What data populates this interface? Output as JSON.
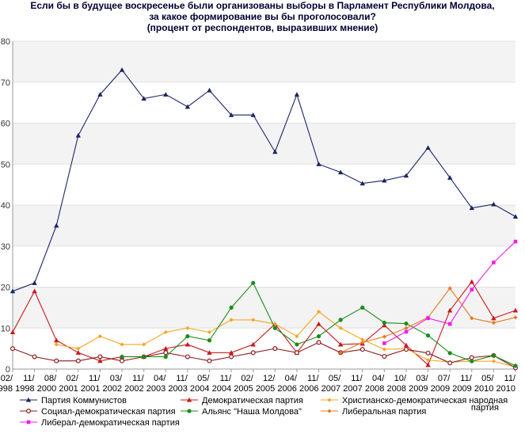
{
  "chart_data": {
    "type": "line",
    "title": [
      "Если бы в будущее воскресенье были организованы выборы в Парламент Республики Молдова,",
      "за какое формирование вы бы проголосовали?",
      "(процент от респондентов, выразивших мнение)"
    ],
    "ylim": [
      0,
      80
    ],
    "yticks": [
      0,
      10,
      20,
      30,
      40,
      50,
      60,
      70,
      80
    ],
    "grid": true,
    "legend_position": "bottom",
    "x_labels": [
      [
        "02/",
        "1998"
      ],
      [
        "11/",
        "1998"
      ],
      [
        "08/",
        "2000"
      ],
      [
        "02/",
        "2001"
      ],
      [
        "11/",
        "2001"
      ],
      [
        "03/",
        "2002"
      ],
      [
        "11/",
        "2002"
      ],
      [
        "04/",
        "2003"
      ],
      [
        "11/",
        "2003"
      ],
      [
        "05/",
        "2004"
      ],
      [
        "11/",
        "2004"
      ],
      [
        "02/",
        "2005"
      ],
      [
        "12/",
        "2005"
      ],
      [
        "04/",
        "2006"
      ],
      [
        "11/",
        "2006"
      ],
      [
        "05/",
        "2007"
      ],
      [
        "11/",
        "2007"
      ],
      [
        "04/",
        "2008"
      ],
      [
        "10/",
        "2008"
      ],
      [
        "03/",
        "2009"
      ],
      [
        "07/",
        "2009"
      ],
      [
        "11/",
        "2009"
      ],
      [
        "05/",
        "2010"
      ],
      [
        "11/",
        "2010"
      ]
    ],
    "series": [
      {
        "name": "Партия Коммунистов",
        "color": "#1a2466",
        "marker": "triangle",
        "points": [
          [
            0,
            19
          ],
          [
            1,
            21
          ],
          [
            2,
            35
          ],
          [
            3,
            57
          ],
          [
            4,
            67
          ],
          [
            5,
            73
          ],
          [
            6,
            66
          ],
          [
            7,
            67
          ],
          [
            8,
            64
          ],
          [
            9,
            68
          ],
          [
            10,
            62
          ],
          [
            11,
            62
          ],
          [
            12,
            53
          ],
          [
            13,
            67
          ],
          [
            14,
            50
          ],
          [
            15,
            48
          ],
          [
            16,
            45.3
          ],
          [
            17,
            46
          ],
          [
            18,
            47.2
          ],
          [
            19,
            54
          ],
          [
            20,
            46.7
          ],
          [
            21,
            39.3
          ],
          [
            22,
            40.2
          ],
          [
            23,
            37.2
          ]
        ]
      },
      {
        "name": "Демократическая партия",
        "color": "#c8191c",
        "marker": "triangle",
        "points": [
          [
            0,
            9
          ],
          [
            1,
            19
          ],
          [
            2,
            7
          ],
          [
            3,
            4
          ],
          [
            4,
            2
          ],
          [
            5,
            3
          ],
          [
            6,
            3
          ],
          [
            7,
            5
          ],
          [
            8,
            6
          ],
          [
            9,
            4
          ],
          [
            10,
            4
          ],
          [
            11,
            6
          ],
          [
            12,
            11
          ],
          [
            13,
            4
          ],
          [
            14,
            11
          ],
          [
            15,
            6
          ],
          [
            16,
            6.2
          ],
          [
            17,
            10.7
          ],
          [
            18,
            5.8
          ],
          [
            19,
            1
          ],
          [
            20,
            14.3
          ],
          [
            21,
            21.3
          ],
          [
            22,
            12.4
          ],
          [
            23,
            14.3
          ]
        ]
      },
      {
        "name": "Христианско-демократическая народная партия",
        "color": "#f5a623",
        "marker": "diamond",
        "points": [
          [
            2,
            6
          ],
          [
            3,
            5
          ],
          [
            4,
            8
          ],
          [
            5,
            6
          ],
          [
            6,
            6
          ],
          [
            7,
            9
          ],
          [
            8,
            10
          ],
          [
            9,
            9
          ],
          [
            10,
            12
          ],
          [
            11,
            12
          ],
          [
            12,
            11
          ],
          [
            13,
            8
          ],
          [
            14,
            14
          ],
          [
            15,
            10
          ],
          [
            16,
            7.2
          ],
          [
            17,
            4.8
          ],
          [
            18,
            5
          ],
          [
            19,
            2.2
          ],
          [
            20,
            1.7
          ],
          [
            21,
            1.9
          ],
          [
            22,
            1.9
          ],
          [
            23,
            0.5
          ]
        ]
      },
      {
        "name": "Социал-демократическая партия",
        "color": "#8b1a1a",
        "marker": "circle-open",
        "points": [
          [
            0,
            5
          ],
          [
            1,
            3
          ],
          [
            2,
            2
          ],
          [
            3,
            2
          ],
          [
            4,
            3
          ],
          [
            5,
            2
          ],
          [
            6,
            3
          ],
          [
            7,
            4
          ],
          [
            8,
            3
          ],
          [
            9,
            2
          ],
          [
            10,
            3
          ],
          [
            11,
            4
          ],
          [
            12,
            5
          ],
          [
            13,
            4
          ],
          [
            14,
            6.5
          ],
          [
            15,
            4
          ],
          [
            16,
            4.8
          ],
          [
            17,
            3.1
          ],
          [
            18,
            4.8
          ],
          [
            19,
            3.9
          ],
          [
            20,
            1.5
          ],
          [
            21,
            2.8
          ],
          [
            22,
            3.3
          ],
          [
            23,
            0.3
          ]
        ]
      },
      {
        "name": "Альянс \"Наша Молдова\"",
        "color": "#1a8c1a",
        "marker": "circle",
        "points": [
          [
            5,
            3
          ],
          [
            6,
            3
          ],
          [
            7,
            3
          ],
          [
            8,
            8
          ],
          [
            9,
            7
          ],
          [
            10,
            15
          ],
          [
            11,
            21
          ],
          [
            12,
            10
          ],
          [
            13,
            6
          ],
          [
            14,
            8
          ],
          [
            15,
            12
          ],
          [
            16,
            15
          ],
          [
            17,
            11.3
          ],
          [
            18,
            11.1
          ],
          [
            19,
            8.2
          ],
          [
            20,
            3.9
          ],
          [
            21,
            1.9
          ],
          [
            22,
            3.3
          ],
          [
            23,
            0.8
          ]
        ]
      },
      {
        "name": "Либеральная партия",
        "color": "#e8781e",
        "marker": "diamond",
        "points": [
          [
            15,
            4
          ],
          [
            16,
            6.5
          ],
          [
            17,
            7.9
          ],
          [
            18,
            10
          ],
          [
            19,
            12.6
          ],
          [
            20,
            19.7
          ],
          [
            21,
            12.4
          ],
          [
            22,
            11.3
          ],
          [
            23,
            12.6
          ]
        ]
      },
      {
        "name": "Либерал-демократическая партия",
        "color": "#ee1ee8",
        "marker": "square",
        "points": [
          [
            17,
            6.3
          ],
          [
            18,
            9.1
          ],
          [
            19,
            12.4
          ],
          [
            20,
            11
          ],
          [
            21,
            19.4
          ],
          [
            22,
            26
          ],
          [
            23,
            31.1
          ]
        ]
      }
    ]
  }
}
